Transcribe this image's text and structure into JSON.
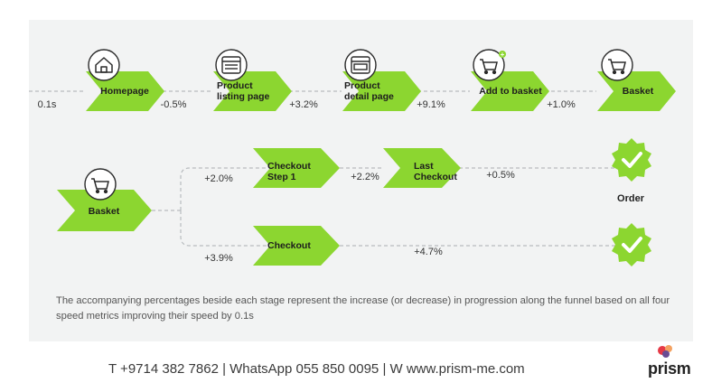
{
  "funnel_row1": {
    "start_pct": "0.1s",
    "stages": [
      {
        "label": "Homepage",
        "icon": "home-icon"
      },
      {
        "label": "Product listing page",
        "icon": "browser-window-icon"
      },
      {
        "label": "Product detail page",
        "icon": "browser-window-icon"
      },
      {
        "label": "Add to basket",
        "icon": "cart-add-icon"
      },
      {
        "label": "Basket",
        "icon": "cart-icon"
      }
    ],
    "pcts": [
      "-0.5%",
      "+3.2%",
      "+9.1%",
      "+1.0%"
    ]
  },
  "funnel_row2": {
    "start_stage": {
      "label": "Basket",
      "icon": "cart-icon"
    },
    "upper_branch": {
      "pcts": [
        "+2.0%",
        "+2.2%",
        "+0.5%"
      ],
      "stages": [
        "Checkout Step 1",
        "Last Checkout"
      ]
    },
    "lower_branch": {
      "pcts": [
        "+3.9%",
        "+4.7%"
      ],
      "stages": [
        "Checkout"
      ]
    },
    "end_label": "Order"
  },
  "caption": "The accompanying percentages beside each stage represent the increase (or decrease) in progression along the funnel based on all four speed metrics improving their speed by 0.1s",
  "footer": "T +9714 382 7862 |  WhatsApp 055 850 0095   | W www.prism-me.com",
  "logo_text": "prism",
  "colors": {
    "chevron": "#8cd630",
    "badge": "#8cd630",
    "panel": "#f2f3f3",
    "dash": "#b8bcbf"
  }
}
